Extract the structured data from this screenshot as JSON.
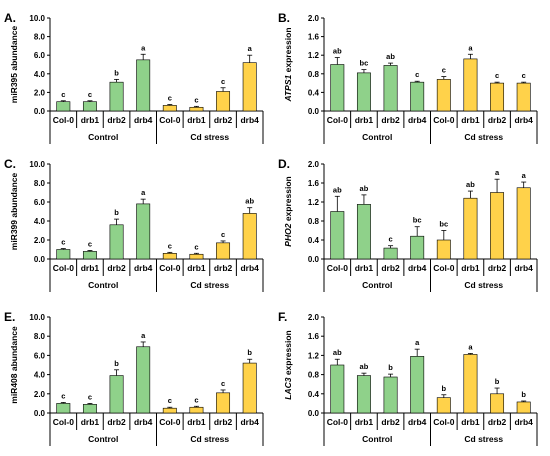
{
  "colors": {
    "control": "#8fd18a",
    "cd_stress": "#ffd24a",
    "edge": "#000000"
  },
  "chart_data": [
    {
      "type": "bar",
      "panel": "A.",
      "ylabel": "miR395 abundance",
      "ylabel_italic": "",
      "ylim": [
        0,
        10
      ],
      "yticks": [
        "0.0",
        "2.0",
        "4.0",
        "6.0",
        "8.0",
        "10.0"
      ],
      "ytick_values": [
        0,
        2,
        4,
        6,
        8,
        10
      ],
      "categories": [
        "Col-0",
        "drb1",
        "drb2",
        "drb4",
        "Col-0",
        "drb1",
        "drb2",
        "drb4"
      ],
      "groups": [
        "Control",
        "Cd stress"
      ],
      "values": [
        1.0,
        1.0,
        3.1,
        5.5,
        0.6,
        0.4,
        2.1,
        5.2
      ],
      "errors": [
        0.1,
        0.1,
        0.3,
        0.6,
        0.1,
        0.1,
        0.4,
        0.8
      ],
      "labels": [
        "c",
        "c",
        "b",
        "a",
        "c",
        "c",
        "c",
        "a"
      ]
    },
    {
      "type": "bar",
      "panel": "B.",
      "ylabel": " expression",
      "ylabel_italic": "ATPS1",
      "ylim": [
        0,
        2
      ],
      "yticks": [
        "0.0",
        "0.4",
        "0.8",
        "1.2",
        "1.6",
        "2.0"
      ],
      "ytick_values": [
        0,
        0.4,
        0.8,
        1.2,
        1.6,
        2.0
      ],
      "categories": [
        "Col-0",
        "drb1",
        "drb2",
        "drb4",
        "Col-0",
        "drb1",
        "drb2",
        "drb4"
      ],
      "groups": [
        "Control",
        "Cd stress"
      ],
      "values": [
        1.0,
        0.82,
        0.98,
        0.62,
        0.68,
        1.12,
        0.6,
        0.6
      ],
      "errors": [
        0.15,
        0.07,
        0.05,
        0.02,
        0.06,
        0.1,
        0.02,
        0.02
      ],
      "labels": [
        "ab",
        "bc",
        "ab",
        "c",
        "c",
        "a",
        "c",
        "c"
      ]
    },
    {
      "type": "bar",
      "panel": "C.",
      "ylabel": "miR399 abundance",
      "ylabel_italic": "",
      "ylim": [
        0,
        10
      ],
      "yticks": [
        "0.0",
        "2.0",
        "4.0",
        "6.0",
        "8.0",
        "10.0"
      ],
      "ytick_values": [
        0,
        2,
        4,
        6,
        8,
        10
      ],
      "categories": [
        "Col-0",
        "drb1",
        "drb2",
        "drb4",
        "Col-0",
        "drb1",
        "drb2",
        "drb4"
      ],
      "groups": [
        "Control",
        "Cd stress"
      ],
      "values": [
        1.0,
        0.8,
        3.6,
        5.8,
        0.6,
        0.5,
        1.7,
        4.8
      ],
      "errors": [
        0.1,
        0.1,
        0.6,
        0.5,
        0.1,
        0.1,
        0.2,
        0.6
      ],
      "labels": [
        "c",
        "c",
        "b",
        "a",
        "c",
        "c",
        "c",
        "ab"
      ]
    },
    {
      "type": "bar",
      "panel": "D.",
      "ylabel": " expression",
      "ylabel_italic": "PHO2",
      "ylim": [
        0,
        2
      ],
      "yticks": [
        "0.0",
        "0.4",
        "0.8",
        "1.2",
        "1.6",
        "2.0"
      ],
      "ytick_values": [
        0,
        0.4,
        0.8,
        1.2,
        1.6,
        2.0
      ],
      "categories": [
        "Col-0",
        "drb1",
        "drb2",
        "drb4",
        "Col-0",
        "drb1",
        "drb2",
        "drb4"
      ],
      "groups": [
        "Control",
        "Cd stress"
      ],
      "values": [
        1.0,
        1.15,
        0.23,
        0.48,
        0.4,
        1.28,
        1.4,
        1.5
      ],
      "errors": [
        0.32,
        0.2,
        0.05,
        0.2,
        0.2,
        0.15,
        0.28,
        0.12
      ],
      "labels": [
        "ab",
        "ab",
        "c",
        "bc",
        "bc",
        "ab",
        "a",
        "a"
      ]
    },
    {
      "type": "bar",
      "panel": "E.",
      "ylabel": "miR408 abundance",
      "ylabel_italic": "",
      "ylim": [
        0,
        10
      ],
      "yticks": [
        "0.0",
        "2.0",
        "4.0",
        "6.0",
        "8.0",
        "10.0"
      ],
      "ytick_values": [
        0,
        2,
        4,
        6,
        8,
        10
      ],
      "categories": [
        "Col-0",
        "drb1",
        "drb2",
        "drb4",
        "Col-0",
        "drb1",
        "drb2",
        "drb4"
      ],
      "groups": [
        "Control",
        "Cd stress"
      ],
      "values": [
        1.0,
        0.9,
        3.9,
        6.9,
        0.5,
        0.6,
        2.1,
        5.2
      ],
      "errors": [
        0.1,
        0.1,
        0.6,
        0.5,
        0.1,
        0.1,
        0.3,
        0.4
      ],
      "labels": [
        "c",
        "c",
        "b",
        "a",
        "c",
        "c",
        "c",
        "b"
      ]
    },
    {
      "type": "bar",
      "panel": "F.",
      "ylabel": " expression",
      "ylabel_italic": "LAC3",
      "ylim": [
        0,
        2
      ],
      "yticks": [
        "0.0",
        "0.4",
        "0.8",
        "1.2",
        "1.6",
        "2.0"
      ],
      "ytick_values": [
        0,
        0.4,
        0.8,
        1.2,
        1.6,
        2.0
      ],
      "categories": [
        "Col-0",
        "drb1",
        "drb2",
        "drb4",
        "Col-0",
        "drb1",
        "drb2",
        "drb4"
      ],
      "groups": [
        "Control",
        "Cd stress"
      ],
      "values": [
        1.0,
        0.78,
        0.75,
        1.18,
        0.32,
        1.22,
        0.4,
        0.23
      ],
      "errors": [
        0.12,
        0.05,
        0.06,
        0.15,
        0.06,
        0.02,
        0.12,
        0.02
      ],
      "labels": [
        "ab",
        "ab",
        "b",
        "a",
        "b",
        "a",
        "b",
        "b"
      ]
    }
  ]
}
